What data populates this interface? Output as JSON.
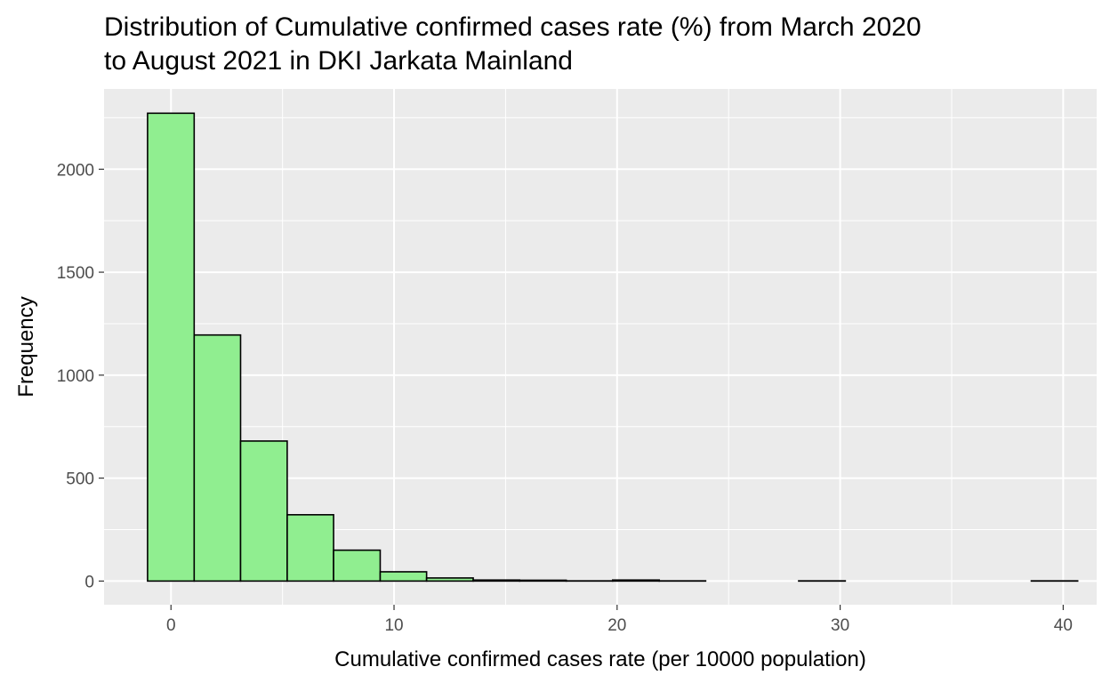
{
  "chart_data": {
    "type": "bar",
    "subtype": "histogram",
    "title_lines": [
      "Distribution of Cumulative confirmed cases rate (%) from March 2020",
      "to August 2021 in DKI Jarkata Mainland"
    ],
    "xlabel": "Cumulative confirmed cases rate (per 10000 population)",
    "ylabel": "Frequency",
    "xlim": [
      -3.0,
      41.5
    ],
    "ylim": [
      -115,
      2390
    ],
    "x_ticks": [
      0,
      10,
      20,
      30,
      40
    ],
    "y_ticks": [
      0,
      500,
      1000,
      1500,
      2000
    ],
    "x_minor_gridlines": [
      -5,
      5,
      15,
      25,
      35
    ],
    "y_minor_gridlines": [
      250,
      750,
      1250,
      1750,
      2250
    ],
    "grid": true,
    "fill_color": "#90EE90",
    "edge_color": "#000000",
    "panel_background": "#EBEBEB",
    "bins": [
      {
        "x_start": -1.05,
        "x_end": 1.04,
        "count": 2272
      },
      {
        "x_start": 1.04,
        "x_end": 3.12,
        "count": 1195
      },
      {
        "x_start": 3.12,
        "x_end": 5.21,
        "count": 680
      },
      {
        "x_start": 5.21,
        "x_end": 7.29,
        "count": 322
      },
      {
        "x_start": 7.29,
        "x_end": 9.38,
        "count": 150
      },
      {
        "x_start": 9.38,
        "x_end": 11.46,
        "count": 45
      },
      {
        "x_start": 11.46,
        "x_end": 13.55,
        "count": 15
      },
      {
        "x_start": 13.55,
        "x_end": 15.63,
        "count": 5
      },
      {
        "x_start": 15.63,
        "x_end": 17.72,
        "count": 4
      },
      {
        "x_start": 17.72,
        "x_end": 19.8,
        "count": 1
      },
      {
        "x_start": 19.8,
        "x_end": 21.89,
        "count": 5
      },
      {
        "x_start": 21.89,
        "x_end": 23.97,
        "count": 1
      },
      {
        "x_start": 23.97,
        "x_end": 26.06,
        "count": 0
      },
      {
        "x_start": 26.06,
        "x_end": 28.14,
        "count": 0
      },
      {
        "x_start": 28.14,
        "x_end": 30.23,
        "count": 1
      },
      {
        "x_start": 30.23,
        "x_end": 32.31,
        "count": 0
      },
      {
        "x_start": 32.31,
        "x_end": 34.4,
        "count": 0
      },
      {
        "x_start": 34.4,
        "x_end": 36.48,
        "count": 0
      },
      {
        "x_start": 36.48,
        "x_end": 38.57,
        "count": 0
      },
      {
        "x_start": 38.57,
        "x_end": 40.65,
        "count": 1
      }
    ]
  }
}
